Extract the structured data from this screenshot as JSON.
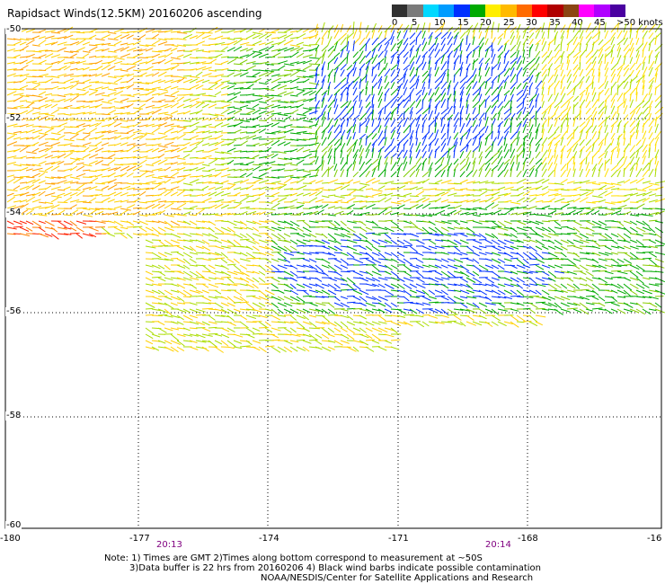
{
  "title": "Rapidsact Winds(12.5KM) 20160206 ascending",
  "scale": {
    "colors": [
      "#303030",
      "#7a7a7a",
      "#00d8ff",
      "#009cff",
      "#0030ff",
      "#00aa00",
      "#ffee00",
      "#ffba00",
      "#ff6a00",
      "#ff0000",
      "#b00000",
      "#8b4513",
      "#ff00ff",
      "#b000ff",
      "#4a00a0"
    ],
    "labels": [
      "0",
      "5",
      "10",
      "15",
      "20",
      "25",
      "30",
      "35",
      "40",
      "45",
      ">50 knots"
    ]
  },
  "latitudes": [
    "-50",
    "-52",
    "-54",
    "-56",
    "-58",
    "-60"
  ],
  "longitudes": [
    "-180",
    "-177",
    "-174",
    "-171",
    "-168",
    "-16"
  ],
  "times": [
    "20:13",
    "20:14"
  ],
  "notes": [
    "Note: 1) Times are GMT 2)Times along bottom correspond to measurement at ~50S",
    "3)Data buffer is 22 hrs from 20160206 4) Black wind barbs indicate possible contamination",
    "NOAA/NESDIS/Center for Satellite Applications and Research"
  ]
}
